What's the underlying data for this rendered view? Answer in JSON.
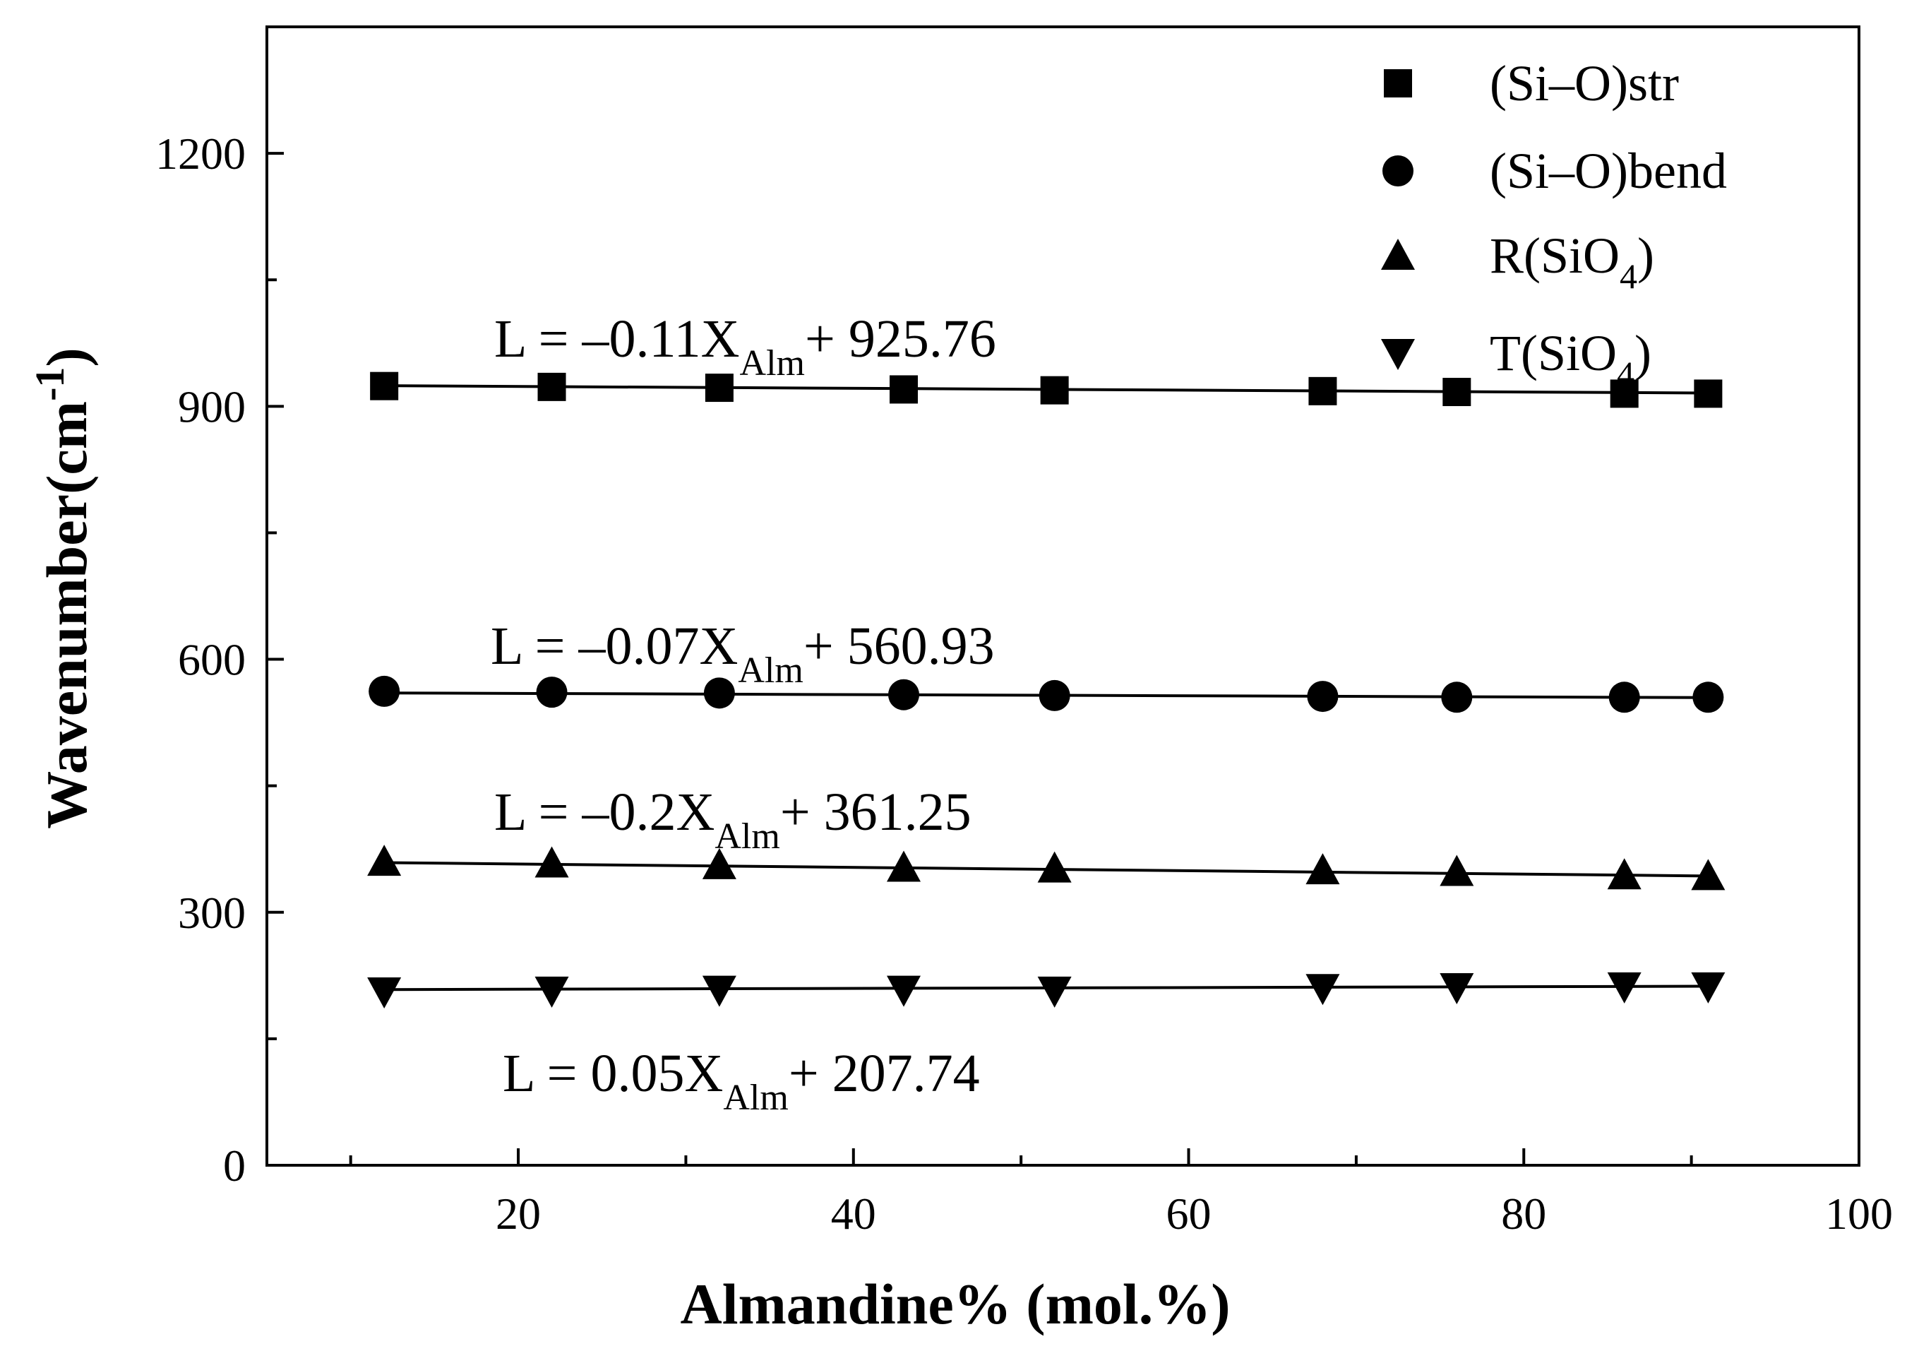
{
  "chart_data": {
    "type": "scatter",
    "xlabel": "Almandine% (mol.%)",
    "ylabel_main": "Wavenumber(cm",
    "ylabel_sup": "-1",
    "ylabel_close": ")",
    "xlim": [
      5,
      100
    ],
    "ylim": [
      0,
      1350
    ],
    "x_major_ticks": [
      20,
      40,
      60,
      80,
      100
    ],
    "x_tick_labels": [
      "20",
      "40",
      "60",
      "80",
      "100"
    ],
    "x_minor_ticks": [
      10,
      30,
      50,
      70,
      90
    ],
    "y_major_ticks": [
      0,
      300,
      600,
      900,
      1200
    ],
    "y_tick_labels": [
      "0",
      "300",
      "600",
      "900",
      "1200"
    ],
    "y_minor_ticks": [
      150,
      450,
      750,
      1050,
      1350
    ],
    "x": [
      12,
      22,
      32,
      43,
      52,
      68,
      76,
      86,
      91
    ],
    "series": [
      {
        "name": "(Si–O)str",
        "legend_main": "(Si–O)str",
        "legend_sub": "",
        "legend_tail": "",
        "marker": "square",
        "values": [
          924,
          923,
          922,
          920,
          919,
          918,
          917,
          915,
          915
        ],
        "fit": {
          "slope": -0.11,
          "intercept": 925.76
        },
        "eq_main": "L = –0.11X",
        "eq_sub": "Alm",
        "eq_tail": "+ 925.76"
      },
      {
        "name": "(Si–O)bend",
        "legend_main": "(Si–O)bend",
        "legend_sub": "",
        "legend_tail": "",
        "marker": "circle",
        "values": [
          562,
          561,
          560,
          558,
          557,
          556,
          555,
          555,
          555
        ],
        "fit": {
          "slope": -0.07,
          "intercept": 560.93
        },
        "eq_main": "L = –0.07X",
        "eq_sub": "Alm",
        "eq_tail": "+ 560.93"
      },
      {
        "name": "R(SiO4)",
        "legend_main": "R(SiO",
        "legend_sub": "4",
        "legend_tail": ")",
        "marker": "triangle-up",
        "values": [
          360,
          358,
          356,
          353,
          352,
          350,
          348,
          344,
          343
        ],
        "fit": {
          "slope": -0.2,
          "intercept": 361.25
        },
        "eq_main": "L = –0.2X",
        "eq_sub": "Alm",
        "eq_tail": "+ 361.25"
      },
      {
        "name": "T(SiO4)",
        "legend_main": "T(SiO",
        "legend_sub": "4",
        "legend_tail": ")",
        "marker": "triangle-down",
        "values": [
          206,
          207,
          208,
          208,
          207,
          210,
          211,
          212,
          212
        ],
        "fit": {
          "slope": 0.05,
          "intercept": 207.74
        },
        "eq_main": "L = 0.05X",
        "eq_sub": "Alm",
        "eq_tail": "+ 207.74"
      }
    ]
  }
}
